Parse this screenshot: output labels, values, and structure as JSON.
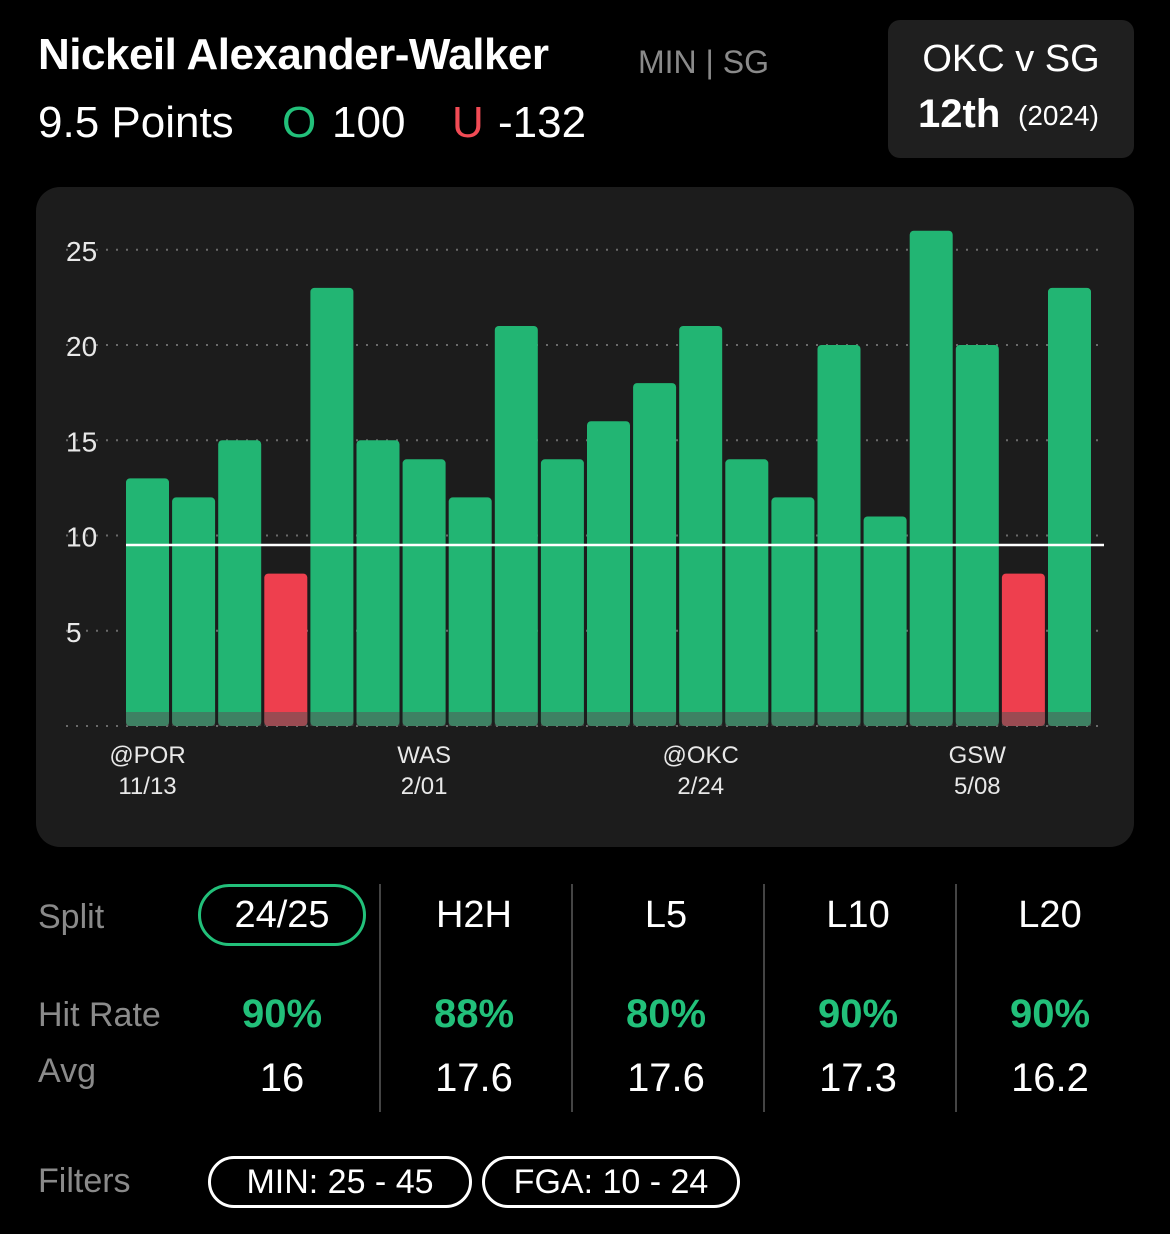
{
  "header": {
    "player_name": "Nickeil Alexander-Walker",
    "player_meta": "MIN | SG",
    "prop_line": "9.5 Points",
    "over_label": "O",
    "over_odds": "100",
    "under_label": "U",
    "under_odds": "-132"
  },
  "matchup": {
    "title": "OKC v SG",
    "rank": "12th",
    "year": "(2024)"
  },
  "colors": {
    "hit": "#22b573",
    "miss": "#ee3f4e",
    "line": "#ffffff",
    "accent": "#22c07a",
    "card_bg": "#1c1c1c"
  },
  "chart_data": {
    "type": "bar",
    "values": [
      13,
      12,
      15,
      8,
      23,
      15,
      14,
      12,
      21,
      14,
      16,
      18,
      21,
      14,
      12,
      20,
      11,
      26,
      20,
      8,
      23
    ],
    "threshold": 9.5,
    "yticks": [
      "5",
      "10",
      "15",
      "20",
      "25"
    ],
    "ylim": [
      0,
      26
    ],
    "grid": true,
    "x_labels": [
      {
        "team": "@POR",
        "date": "11/13",
        "index": 0
      },
      {
        "team": "WAS",
        "date": "2/01",
        "index": 6
      },
      {
        "team": "@OKC",
        "date": "2/24",
        "index": 12
      },
      {
        "team": "GSW",
        "date": "5/08",
        "index": 18
      }
    ]
  },
  "stats": {
    "split_label": "Split",
    "hit_label": "Hit Rate",
    "avg_label": "Avg",
    "columns": [
      {
        "name": "24/25",
        "hit": "90%",
        "avg": "16"
      },
      {
        "name": "H2H",
        "hit": "88%",
        "avg": "17.6"
      },
      {
        "name": "L5",
        "hit": "80%",
        "avg": "17.6"
      },
      {
        "name": "L10",
        "hit": "90%",
        "avg": "17.3"
      },
      {
        "name": "L20",
        "hit": "90%",
        "avg": "16.2"
      }
    ]
  },
  "filters": {
    "label": "Filters",
    "items": [
      "MIN: 25 - 45",
      "FGA: 10 - 24"
    ]
  }
}
